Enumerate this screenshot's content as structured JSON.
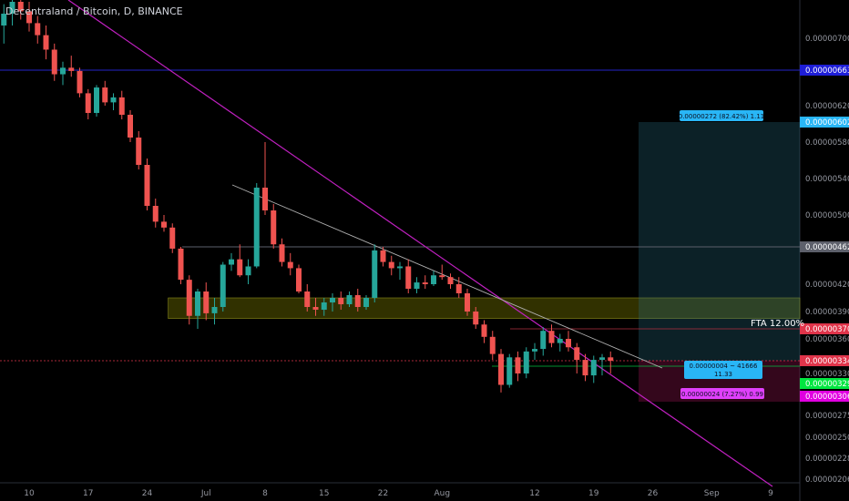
{
  "header": {
    "title": "Decentraland / Bitcoin, D, BINANCE"
  },
  "chart_data": {
    "type": "candlestick",
    "title": "Decentraland / Bitcoin, D, BINANCE",
    "ylim": [
      2e-06,
      7.3e-06
    ],
    "y_ticks": [
      "0.00000700",
      "0.00000620",
      "0.00000580",
      "0.00000540",
      "0.00000500",
      "0.00000462",
      "0.00000420",
      "0.00000390",
      "0.00000360",
      "0.00000330",
      "0.00000290",
      "0.00000275",
      "0.00000250",
      "0.00000228",
      "0.00000206"
    ],
    "x_ticks": [
      {
        "label": "10",
        "day": 0
      },
      {
        "label": "17",
        "day": 7
      },
      {
        "label": "24",
        "day": 14
      },
      {
        "label": "Jul",
        "day": 21
      },
      {
        "label": "8",
        "day": 28
      },
      {
        "label": "15",
        "day": 35
      },
      {
        "label": "22",
        "day": 42
      },
      {
        "label": "Aug",
        "day": 49
      },
      {
        "label": "12",
        "day": 60
      },
      {
        "label": "19",
        "day": 67
      },
      {
        "label": "26",
        "day": 74
      },
      {
        "label": "Sep",
        "day": 81
      },
      {
        "label": "9",
        "day": 88
      }
    ],
    "price_badges": [
      {
        "label": "0.00000663",
        "value": 6.63e-06,
        "color": "#1e1ed8"
      },
      {
        "label": "0.00000602",
        "value": 6.02e-06,
        "color": "#29b6f6"
      },
      {
        "label": "0.00000462",
        "value": 4.62e-06,
        "color": "#5d606b"
      },
      {
        "label": "0.00000370",
        "value": 3.7e-06,
        "color": "#e0344a"
      },
      {
        "label": "0.00000334",
        "value": 3.34e-06,
        "color": "#e0344a"
      },
      {
        "label": "0.00000329",
        "value": 3.29e-06,
        "color": "#00e640"
      },
      {
        "label": "0.00000306",
        "value": 3.06e-06,
        "color": "#e000e0"
      }
    ],
    "annotations": {
      "fta_label": "FTA 12.00%",
      "target_label": "0.00000272 (82.42%) 1.11",
      "position_label_1": "0.00000004 ~ 41666",
      "position_label_2": "11.33",
      "stop_label": "0.00000024 (7.27%) 0.99"
    },
    "candles": [
      [
        7.0,
        7.18,
        6.85,
        7.1
      ],
      [
        7.1,
        7.3,
        7.0,
        7.2
      ],
      [
        7.2,
        7.35,
        7.05,
        7.12
      ],
      [
        7.12,
        7.2,
        6.95,
        7.02
      ],
      [
        7.02,
        7.08,
        6.85,
        6.92
      ],
      [
        6.92,
        7.0,
        6.72,
        6.8
      ],
      [
        6.8,
        6.85,
        6.5,
        6.58
      ],
      [
        6.58,
        6.7,
        6.45,
        6.65
      ],
      [
        6.65,
        6.75,
        6.55,
        6.62
      ],
      [
        6.62,
        6.65,
        6.3,
        6.35
      ],
      [
        6.35,
        6.4,
        6.05,
        6.12
      ],
      [
        6.12,
        6.45,
        6.08,
        6.42
      ],
      [
        6.42,
        6.5,
        6.2,
        6.24
      ],
      [
        6.24,
        6.35,
        6.15,
        6.3
      ],
      [
        6.3,
        6.38,
        6.05,
        6.1
      ],
      [
        6.1,
        6.15,
        5.8,
        5.85
      ],
      [
        5.85,
        5.92,
        5.5,
        5.55
      ],
      [
        5.55,
        5.62,
        5.05,
        5.1
      ],
      [
        5.1,
        5.18,
        4.85,
        4.92
      ],
      [
        4.92,
        5.0,
        4.8,
        4.85
      ],
      [
        4.85,
        4.9,
        4.55,
        4.6
      ],
      [
        4.6,
        4.62,
        4.2,
        4.25
      ],
      [
        4.25,
        4.3,
        3.75,
        3.85
      ],
      [
        3.85,
        4.15,
        3.7,
        4.12
      ],
      [
        4.12,
        4.22,
        3.8,
        3.88
      ],
      [
        3.88,
        4.05,
        3.75,
        3.95
      ],
      [
        3.95,
        4.45,
        3.9,
        4.42
      ],
      [
        4.42,
        4.55,
        4.35,
        4.48
      ],
      [
        4.48,
        4.65,
        4.28,
        4.3
      ],
      [
        4.3,
        4.48,
        4.2,
        4.4
      ],
      [
        4.4,
        5.35,
        4.38,
        5.3
      ],
      [
        5.3,
        5.8,
        5.0,
        5.05
      ],
      [
        5.05,
        5.12,
        4.6,
        4.65
      ],
      [
        4.65,
        4.72,
        4.4,
        4.45
      ],
      [
        4.45,
        4.55,
        4.3,
        4.38
      ],
      [
        4.38,
        4.42,
        4.1,
        4.12
      ],
      [
        4.12,
        4.2,
        3.9,
        3.95
      ],
      [
        3.95,
        4.05,
        3.85,
        3.92
      ],
      [
        3.92,
        4.05,
        3.85,
        4.0
      ],
      [
        4.0,
        4.1,
        3.9,
        4.05
      ],
      [
        4.05,
        4.12,
        3.92,
        3.98
      ],
      [
        3.98,
        4.12,
        3.95,
        4.08
      ],
      [
        4.08,
        4.15,
        3.9,
        3.95
      ],
      [
        3.95,
        4.08,
        3.92,
        4.05
      ],
      [
        4.05,
        4.65,
        4.0,
        4.58
      ],
      [
        4.58,
        4.62,
        4.4,
        4.45
      ],
      [
        4.45,
        4.52,
        4.3,
        4.38
      ],
      [
        4.38,
        4.45,
        4.25,
        4.4
      ],
      [
        4.4,
        4.48,
        4.1,
        4.15
      ],
      [
        4.15,
        4.28,
        4.1,
        4.22
      ],
      [
        4.22,
        4.3,
        4.15,
        4.2
      ],
      [
        4.2,
        4.35,
        4.18,
        4.3
      ],
      [
        4.3,
        4.42,
        4.25,
        4.28
      ],
      [
        4.28,
        4.32,
        4.15,
        4.2
      ],
      [
        4.2,
        4.28,
        4.05,
        4.1
      ],
      [
        4.1,
        4.15,
        3.85,
        3.9
      ],
      [
        3.9,
        3.95,
        3.7,
        3.75
      ],
      [
        3.75,
        3.8,
        3.55,
        3.62
      ],
      [
        3.62,
        3.68,
        3.35,
        3.42
      ],
      [
        3.42,
        3.48,
        3.1,
        3.18
      ],
      [
        3.18,
        3.42,
        3.15,
        3.38
      ],
      [
        3.38,
        3.45,
        3.22,
        3.3
      ],
      [
        3.3,
        3.5,
        3.25,
        3.45
      ],
      [
        3.45,
        3.55,
        3.35,
        3.48
      ],
      [
        3.48,
        3.72,
        3.4,
        3.68
      ],
      [
        3.68,
        3.75,
        3.5,
        3.55
      ],
      [
        3.55,
        3.65,
        3.45,
        3.6
      ],
      [
        3.6,
        3.68,
        3.45,
        3.5
      ],
      [
        3.5,
        3.55,
        3.3,
        3.35
      ],
      [
        3.35,
        3.42,
        3.22,
        3.28
      ],
      [
        3.28,
        3.4,
        3.2,
        3.35
      ],
      [
        3.35,
        3.42,
        3.28,
        3.38
      ],
      [
        3.38,
        3.45,
        3.3,
        3.34
      ]
    ]
  }
}
